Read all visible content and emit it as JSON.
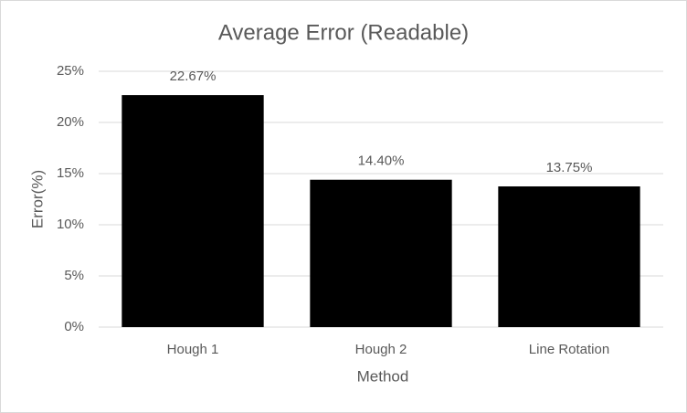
{
  "chart_data": {
    "type": "bar",
    "title": "Average Error (Readable)",
    "x_label": "Method",
    "y_label": "Error(%)",
    "categories": [
      "Hough 1",
      "Hough 2",
      "Line Rotation"
    ],
    "values": [
      22.67,
      14.4,
      13.75
    ],
    "value_labels": [
      "22.67%",
      "14.40%",
      "13.75%"
    ],
    "color": "#000000",
    "ylim": [
      0,
      25
    ],
    "yticks": [
      {
        "value": 0,
        "label": "0%"
      },
      {
        "value": 5,
        "label": "5%"
      },
      {
        "value": 10,
        "label": "10%"
      },
      {
        "value": 15,
        "label": "15%"
      },
      {
        "value": 20,
        "label": "20%"
      },
      {
        "value": 25,
        "label": "25%"
      }
    ],
    "grid": true
  }
}
